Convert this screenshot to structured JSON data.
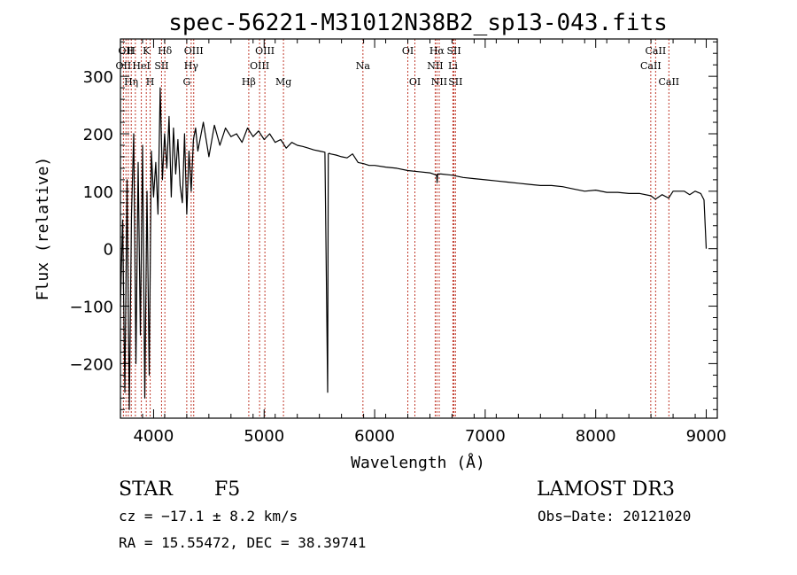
{
  "chart_data": {
    "type": "line",
    "title": "spec-56221-M31012N38B2_sp13-043.fits",
    "xlabel": "Wavelength (Å)",
    "ylabel": "Flux (relative)",
    "xlim": [
      3700,
      9100
    ],
    "ylim": [
      -295,
      365
    ],
    "xticks": [
      4000,
      5000,
      6000,
      7000,
      8000,
      9000
    ],
    "yticks": [
      -200,
      -100,
      0,
      100,
      200,
      300
    ],
    "series": [
      {
        "name": "flux",
        "x": [
          3700,
          3720,
          3740,
          3760,
          3780,
          3800,
          3820,
          3840,
          3860,
          3880,
          3900,
          3920,
          3940,
          3960,
          3980,
          4000,
          4020,
          4040,
          4060,
          4080,
          4100,
          4120,
          4140,
          4160,
          4180,
          4200,
          4220,
          4240,
          4260,
          4280,
          4300,
          4320,
          4340,
          4360,
          4380,
          4400,
          4450,
          4500,
          4550,
          4600,
          4650,
          4700,
          4750,
          4800,
          4850,
          4900,
          4950,
          5000,
          5050,
          5100,
          5150,
          5200,
          5250,
          5300,
          5350,
          5400,
          5450,
          5500,
          5550,
          5575,
          5580,
          5590,
          5600,
          5650,
          5700,
          5750,
          5800,
          5850,
          5900,
          5950,
          6000,
          6100,
          6200,
          6300,
          6400,
          6500,
          6560,
          6565,
          6570,
          6600,
          6700,
          6800,
          6900,
          7000,
          7100,
          7200,
          7300,
          7400,
          7500,
          7600,
          7700,
          7800,
          7900,
          8000,
          8100,
          8200,
          8300,
          8400,
          8500,
          8540,
          8600,
          8660,
          8700,
          8800,
          8850,
          8900,
          8950,
          8980,
          9000
        ],
        "y": [
          -100,
          50,
          -250,
          120,
          -280,
          60,
          200,
          -200,
          150,
          -150,
          180,
          -260,
          100,
          -220,
          170,
          90,
          150,
          60,
          280,
          120,
          200,
          140,
          230,
          90,
          210,
          130,
          190,
          110,
          80,
          200,
          60,
          170,
          100,
          190,
          210,
          170,
          220,
          160,
          215,
          180,
          210,
          195,
          200,
          185,
          210,
          195,
          205,
          190,
          200,
          185,
          190,
          175,
          185,
          180,
          178,
          175,
          172,
          170,
          168,
          -250,
          165,
          166,
          165,
          163,
          160,
          158,
          165,
          150,
          148,
          145,
          145,
          142,
          140,
          136,
          134,
          132,
          128,
          115,
          130,
          130,
          128,
          124,
          122,
          120,
          118,
          116,
          114,
          112,
          110,
          110,
          108,
          104,
          100,
          102,
          98,
          98,
          96,
          96,
          92,
          86,
          94,
          88,
          100,
          100,
          94,
          100,
          96,
          85,
          0
        ]
      }
    ],
    "lines": [
      {
        "wl": 3727,
        "row": 2,
        "label": "OII"
      },
      {
        "wl": 3750,
        "row": 1,
        "label": "OII"
      },
      {
        "wl": 3771,
        "row": 3,
        "label": "H"
      },
      {
        "wl": 3798,
        "row": 1,
        "label": "H"
      },
      {
        "wl": 3835,
        "row": 3,
        "label": "η"
      },
      {
        "wl": 3889,
        "row": 2,
        "label": "HeI"
      },
      {
        "wl": 3934,
        "row": 1,
        "label": "K"
      },
      {
        "wl": 3969,
        "row": 3,
        "label": "H"
      },
      {
        "wl": 4072,
        "row": 2,
        "label": "SII"
      },
      {
        "wl": 4102,
        "row": 1,
        "label": "Hδ"
      },
      {
        "wl": 4300,
        "row": 3,
        "label": "G"
      },
      {
        "wl": 4340,
        "row": 2,
        "label": "Hγ"
      },
      {
        "wl": 4363,
        "row": 1,
        "label": "OIII"
      },
      {
        "wl": 4861,
        "row": 3,
        "label": "Hβ"
      },
      {
        "wl": 4959,
        "row": 2,
        "label": "OIII"
      },
      {
        "wl": 5007,
        "row": 1,
        "label": "OIII"
      },
      {
        "wl": 5175,
        "row": 3,
        "label": "Mg"
      },
      {
        "wl": 5894,
        "row": 2,
        "label": "Na"
      },
      {
        "wl": 6300,
        "row": 1,
        "label": "OI"
      },
      {
        "wl": 6364,
        "row": 3,
        "label": "OI"
      },
      {
        "wl": 6548,
        "row": 2,
        "label": "NII"
      },
      {
        "wl": 6563,
        "row": 1,
        "label": "Hα"
      },
      {
        "wl": 6584,
        "row": 3,
        "label": "NII"
      },
      {
        "wl": 6708,
        "row": 2,
        "label": "Li"
      },
      {
        "wl": 6717,
        "row": 1,
        "label": "SII"
      },
      {
        "wl": 6731,
        "row": 3,
        "label": "SII"
      },
      {
        "wl": 8498,
        "row": 2,
        "label": "CaII"
      },
      {
        "wl": 8542,
        "row": 1,
        "label": "CaII"
      },
      {
        "wl": 8662,
        "row": 3,
        "label": "CaII"
      }
    ]
  },
  "info": {
    "class": "STAR",
    "subclass": "F5",
    "survey": "LAMOST DR3",
    "cz": "cz = −17.1 ± 8.2 km/s",
    "obs_date": "Obs−Date: 20121020",
    "coords": "RA =  15.55472, DEC =  38.39741"
  }
}
